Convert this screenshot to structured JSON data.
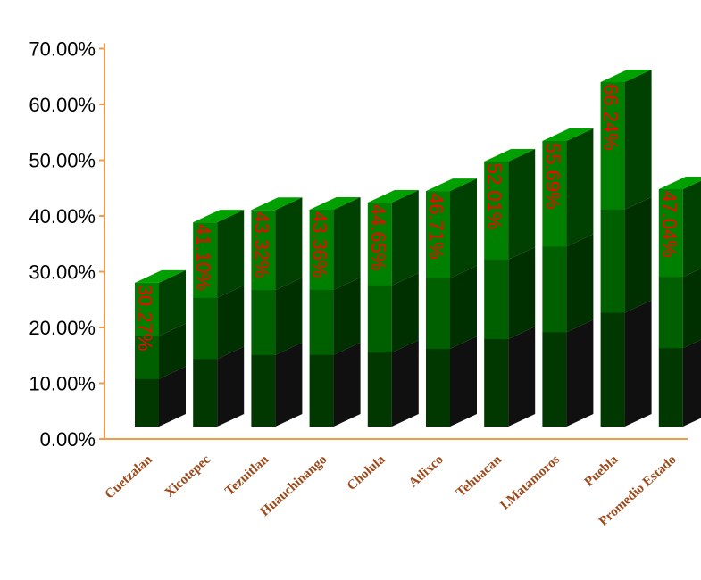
{
  "chart_data": {
    "type": "bar",
    "title": "",
    "xlabel": "",
    "ylabel": "",
    "ylim": [
      0,
      0.7
    ],
    "y_ticks": [
      "0.00%",
      "10.00%",
      "20.00%",
      "30.00%",
      "40.00%",
      "50.00%",
      "60.00%",
      "70.00%"
    ],
    "categories": [
      "Cuetzalan",
      "Xicotepec",
      "Tezuitlan",
      "Huauchinango",
      "Cholula",
      "Atlixco",
      "Tehuacan",
      "I.Matamoros",
      "Puebla",
      "Promedio Estado"
    ],
    "values": [
      0.3027,
      0.411,
      0.4332,
      0.4336,
      0.4465,
      0.4671,
      0.5201,
      0.5569,
      0.6624,
      0.4704
    ],
    "data_labels": [
      "30.27%",
      "41.10%",
      "43.32%",
      "43.36%",
      "44.65%",
      "46.71%",
      "52.01%",
      "55.69%",
      "66.24%",
      "47.04%"
    ],
    "style": "3d-stacked-shaded",
    "grid": false,
    "colors": {
      "axis": "#f39a4a",
      "category_text": "#9c4a1a",
      "data_label": "#ff0000",
      "front_top": "#008000",
      "front_mid": "#006000",
      "front_bottom": "#003800",
      "side_top": "#004000",
      "side_mid": "#003000",
      "side_bottom": "#101010",
      "top_face": "#00a000"
    }
  }
}
